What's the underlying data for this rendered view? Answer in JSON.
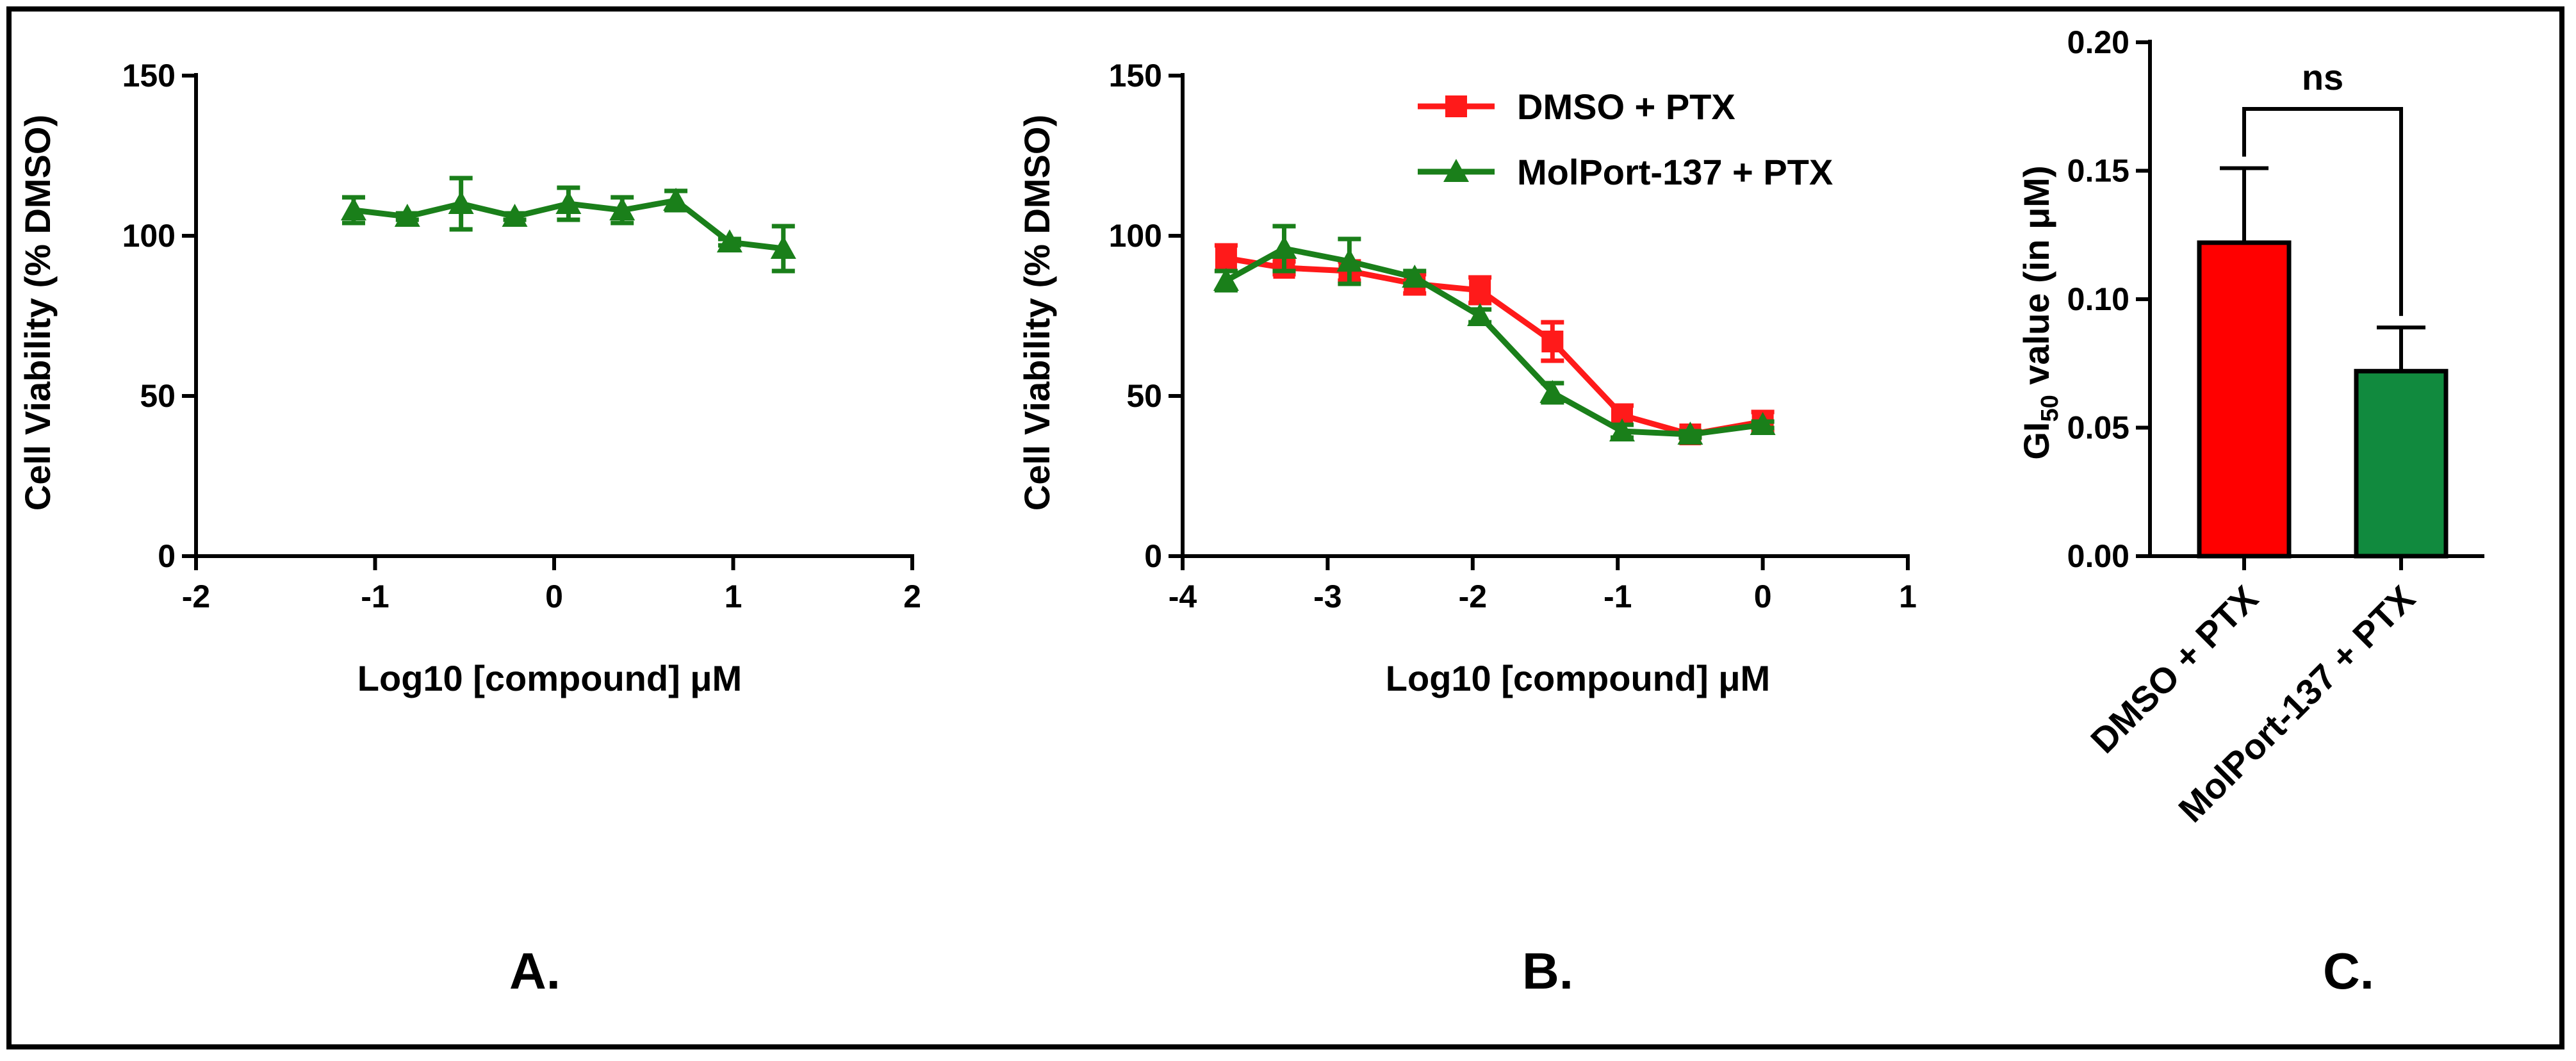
{
  "chart_data": [
    {
      "panel": "A.",
      "type": "line",
      "xlabel": "Log10 [compound] μM",
      "ylabel": "Cell Viability (% DMSO)",
      "xlim": [
        -2,
        2
      ],
      "ylim": [
        0,
        150
      ],
      "xticks": [
        "-2",
        "-1",
        "0",
        "1",
        "2"
      ],
      "yticks": [
        "0",
        "50",
        "100",
        "150"
      ],
      "series": [
        {
          "name": "MolPort-137",
          "color": "#1a7f1a",
          "marker": "triangle",
          "x": [
            -1.12,
            -0.82,
            -0.52,
            -0.22,
            0.08,
            0.38,
            0.68,
            0.98,
            1.28
          ],
          "y": [
            108,
            106,
            110,
            106,
            110,
            108,
            111,
            98,
            96
          ],
          "err": [
            4,
            1,
            8,
            1,
            5,
            4,
            3,
            1,
            7
          ]
        }
      ]
    },
    {
      "panel": "B.",
      "type": "line",
      "xlabel": "Log10 [compound] μM",
      "ylabel": "Cell Viability (% DMSO)",
      "xlim": [
        -4,
        1
      ],
      "ylim": [
        0,
        150
      ],
      "xticks": [
        "-4",
        "-3",
        "-2",
        "-1",
        "0",
        "1"
      ],
      "yticks": [
        "0",
        "50",
        "100",
        "150"
      ],
      "legend_position": "top-right",
      "series": [
        {
          "name": "DMSO + PTX",
          "color": "#ff1a1a",
          "marker": "square",
          "x": [
            -3.7,
            -3.3,
            -2.85,
            -2.4,
            -1.95,
            -1.45,
            -0.97,
            -0.5,
            0
          ],
          "y": [
            93,
            90,
            89,
            85,
            83,
            67,
            44,
            38,
            42
          ],
          "err": [
            4,
            2,
            3,
            3,
            4,
            6,
            3,
            1,
            3
          ]
        },
        {
          "name": "MolPort-137 + PTX",
          "color": "#1a7f1a",
          "marker": "triangle",
          "x": [
            -3.7,
            -3.3,
            -2.85,
            -2.4,
            -1.95,
            -1.45,
            -0.97,
            -0.5,
            0
          ],
          "y": [
            86,
            96,
            92,
            87,
            75,
            51,
            39,
            38,
            41
          ],
          "err": [
            3,
            7,
            7,
            2,
            2,
            3,
            2,
            1,
            1
          ]
        }
      ]
    },
    {
      "panel": "C.",
      "type": "bar",
      "ylabel_main": "GI",
      "ylabel_sub": "50",
      "ylabel_rest": " value (in μM)",
      "ylim": [
        0,
        0.2
      ],
      "yticks": [
        "0.00",
        "0.05",
        "0.10",
        "0.15",
        "0.20"
      ],
      "categories": [
        "DMSO + PTX",
        "MolPort-137 + PTX"
      ],
      "values": [
        0.122,
        0.072
      ],
      "err": [
        0.029,
        0.017
      ],
      "colors": [
        "#ff0000",
        "#118a3e"
      ],
      "annotation": "ns"
    }
  ]
}
